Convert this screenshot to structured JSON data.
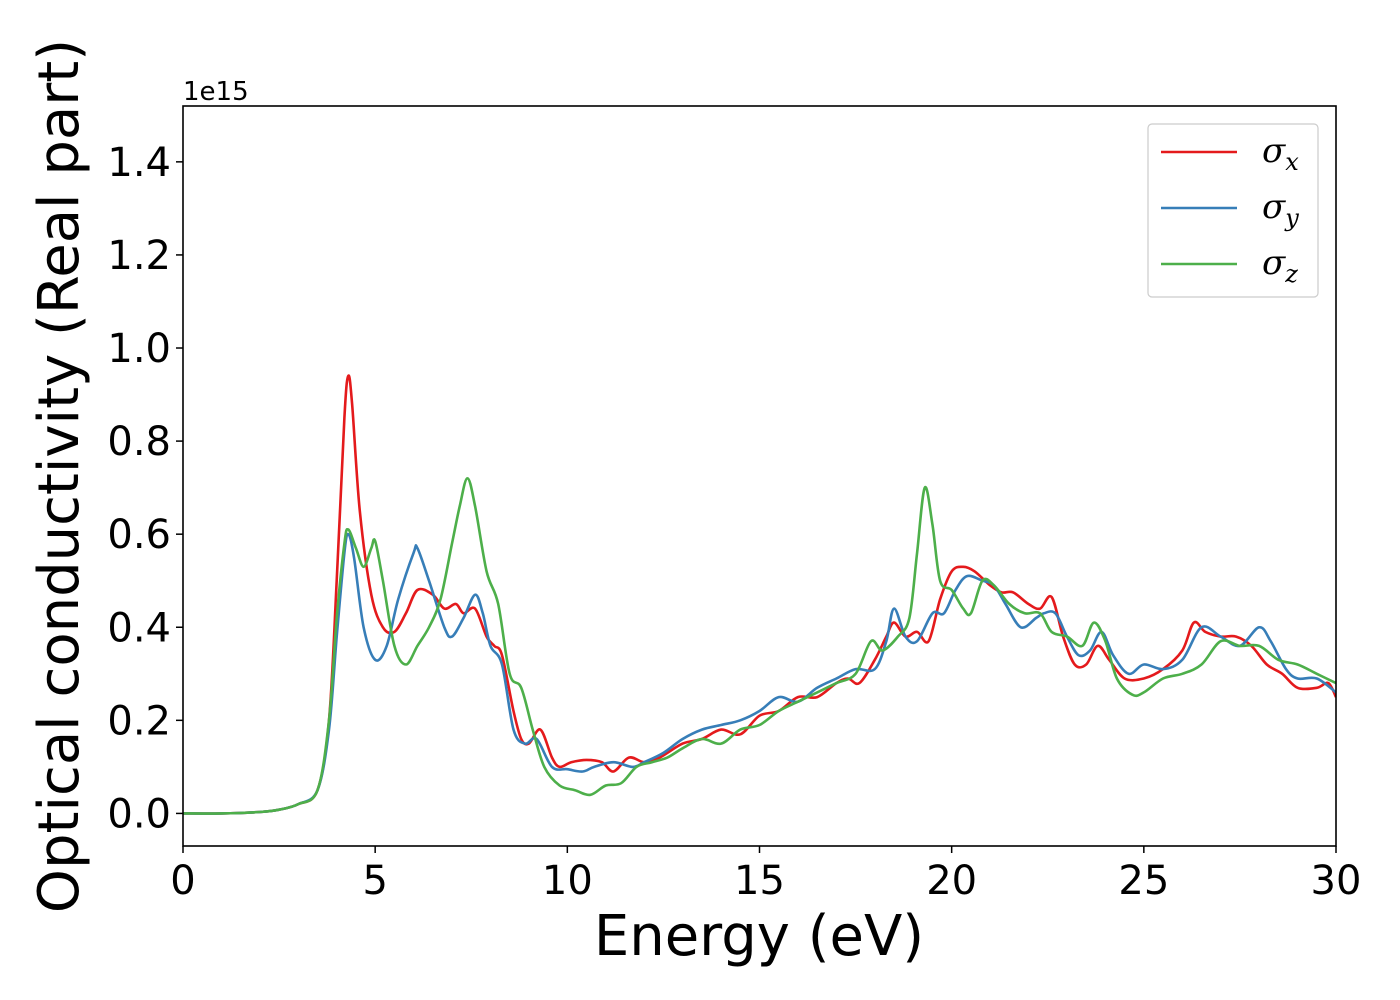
{
  "chart_data": {
    "type": "line",
    "xlabel": "Energy (eV)",
    "ylabel": "Optical conductivity (Real part)",
    "y_offset_label": "1e15",
    "xlim": [
      0,
      30
    ],
    "ylim": [
      -0.07,
      1.52
    ],
    "xticks": [
      0,
      5,
      10,
      15,
      20,
      25,
      30
    ],
    "xtick_labels": [
      "0",
      "5",
      "10",
      "15",
      "20",
      "25",
      "30"
    ],
    "yticks": [
      0.0,
      0.2,
      0.4,
      0.6,
      0.8,
      1.0,
      1.2,
      1.4
    ],
    "ytick_labels": [
      "0.0",
      "0.2",
      "0.4",
      "0.6",
      "0.8",
      "1.0",
      "1.2",
      "1.4"
    ],
    "grid": false,
    "legend_position": "top-right",
    "series": [
      {
        "name": "σ",
        "subscript": "x",
        "color": "#e41a1c",
        "points": [
          [
            0,
            0
          ],
          [
            1,
            0
          ],
          [
            2,
            0.003
          ],
          [
            2.5,
            0.008
          ],
          [
            3,
            0.02
          ],
          [
            3.5,
            0.05
          ],
          [
            3.8,
            0.2
          ],
          [
            4.0,
            0.5
          ],
          [
            4.2,
            0.85
          ],
          [
            4.3,
            0.94
          ],
          [
            4.4,
            0.88
          ],
          [
            4.6,
            0.65
          ],
          [
            4.9,
            0.47
          ],
          [
            5.2,
            0.4
          ],
          [
            5.5,
            0.39
          ],
          [
            5.8,
            0.43
          ],
          [
            6.1,
            0.48
          ],
          [
            6.5,
            0.47
          ],
          [
            6.8,
            0.44
          ],
          [
            7.1,
            0.45
          ],
          [
            7.3,
            0.43
          ],
          [
            7.6,
            0.44
          ],
          [
            7.9,
            0.38
          ],
          [
            8.1,
            0.36
          ],
          [
            8.3,
            0.34
          ],
          [
            8.6,
            0.22
          ],
          [
            8.8,
            0.16
          ],
          [
            9.0,
            0.15
          ],
          [
            9.3,
            0.18
          ],
          [
            9.6,
            0.12
          ],
          [
            9.8,
            0.1
          ],
          [
            10.1,
            0.11
          ],
          [
            10.5,
            0.115
          ],
          [
            10.9,
            0.11
          ],
          [
            11.2,
            0.09
          ],
          [
            11.6,
            0.12
          ],
          [
            12.0,
            0.11
          ],
          [
            12.4,
            0.12
          ],
          [
            13.0,
            0.15
          ],
          [
            13.5,
            0.16
          ],
          [
            14.0,
            0.18
          ],
          [
            14.5,
            0.17
          ],
          [
            15.0,
            0.21
          ],
          [
            15.5,
            0.22
          ],
          [
            16.0,
            0.25
          ],
          [
            16.5,
            0.25
          ],
          [
            17.0,
            0.28
          ],
          [
            17.3,
            0.29
          ],
          [
            17.6,
            0.28
          ],
          [
            18.0,
            0.33
          ],
          [
            18.3,
            0.38
          ],
          [
            18.5,
            0.41
          ],
          [
            18.8,
            0.38
          ],
          [
            19.1,
            0.39
          ],
          [
            19.4,
            0.37
          ],
          [
            19.7,
            0.46
          ],
          [
            20.0,
            0.52
          ],
          [
            20.3,
            0.53
          ],
          [
            20.6,
            0.52
          ],
          [
            21.0,
            0.49
          ],
          [
            21.3,
            0.475
          ],
          [
            21.6,
            0.475
          ],
          [
            22.0,
            0.45
          ],
          [
            22.3,
            0.44
          ],
          [
            22.6,
            0.465
          ],
          [
            22.9,
            0.38
          ],
          [
            23.2,
            0.32
          ],
          [
            23.5,
            0.32
          ],
          [
            23.8,
            0.36
          ],
          [
            24.1,
            0.33
          ],
          [
            24.5,
            0.29
          ],
          [
            25.0,
            0.29
          ],
          [
            25.5,
            0.31
          ],
          [
            26.0,
            0.35
          ],
          [
            26.3,
            0.41
          ],
          [
            26.6,
            0.39
          ],
          [
            27.0,
            0.38
          ],
          [
            27.4,
            0.38
          ],
          [
            27.8,
            0.36
          ],
          [
            28.2,
            0.32
          ],
          [
            28.6,
            0.3
          ],
          [
            29.0,
            0.27
          ],
          [
            29.5,
            0.27
          ],
          [
            29.8,
            0.28
          ],
          [
            30,
            0.25
          ]
        ]
      },
      {
        "name": "σ",
        "subscript": "y",
        "color": "#377eb8",
        "points": [
          [
            0,
            0
          ],
          [
            1,
            0
          ],
          [
            2,
            0.003
          ],
          [
            2.5,
            0.008
          ],
          [
            3,
            0.02
          ],
          [
            3.5,
            0.05
          ],
          [
            3.8,
            0.18
          ],
          [
            4.0,
            0.38
          ],
          [
            4.2,
            0.56
          ],
          [
            4.3,
            0.6
          ],
          [
            4.45,
            0.55
          ],
          [
            4.7,
            0.4
          ],
          [
            5.0,
            0.33
          ],
          [
            5.3,
            0.36
          ],
          [
            5.6,
            0.46
          ],
          [
            6.0,
            0.56
          ],
          [
            6.1,
            0.57
          ],
          [
            6.4,
            0.5
          ],
          [
            6.8,
            0.4
          ],
          [
            7.0,
            0.38
          ],
          [
            7.3,
            0.42
          ],
          [
            7.6,
            0.47
          ],
          [
            7.8,
            0.43
          ],
          [
            8.0,
            0.36
          ],
          [
            8.3,
            0.32
          ],
          [
            8.6,
            0.18
          ],
          [
            8.9,
            0.15
          ],
          [
            9.2,
            0.16
          ],
          [
            9.6,
            0.1
          ],
          [
            10.0,
            0.095
          ],
          [
            10.4,
            0.09
          ],
          [
            10.7,
            0.1
          ],
          [
            11.2,
            0.11
          ],
          [
            11.7,
            0.1
          ],
          [
            12.0,
            0.11
          ],
          [
            12.5,
            0.13
          ],
          [
            13.0,
            0.16
          ],
          [
            13.5,
            0.18
          ],
          [
            14.0,
            0.19
          ],
          [
            14.5,
            0.2
          ],
          [
            15.0,
            0.22
          ],
          [
            15.5,
            0.25
          ],
          [
            16.0,
            0.24
          ],
          [
            16.5,
            0.27
          ],
          [
            17.0,
            0.29
          ],
          [
            17.5,
            0.31
          ],
          [
            18.0,
            0.31
          ],
          [
            18.3,
            0.37
          ],
          [
            18.5,
            0.44
          ],
          [
            18.8,
            0.38
          ],
          [
            19.1,
            0.37
          ],
          [
            19.5,
            0.43
          ],
          [
            19.8,
            0.43
          ],
          [
            20.1,
            0.48
          ],
          [
            20.4,
            0.51
          ],
          [
            20.8,
            0.5
          ],
          [
            21.1,
            0.49
          ],
          [
            21.4,
            0.45
          ],
          [
            21.8,
            0.4
          ],
          [
            22.2,
            0.42
          ],
          [
            22.4,
            0.43
          ],
          [
            22.7,
            0.43
          ],
          [
            23.0,
            0.38
          ],
          [
            23.3,
            0.34
          ],
          [
            23.6,
            0.35
          ],
          [
            23.9,
            0.39
          ],
          [
            24.2,
            0.34
          ],
          [
            24.6,
            0.3
          ],
          [
            25.0,
            0.32
          ],
          [
            25.5,
            0.31
          ],
          [
            26.0,
            0.33
          ],
          [
            26.5,
            0.4
          ],
          [
            27.0,
            0.38
          ],
          [
            27.5,
            0.36
          ],
          [
            28.0,
            0.4
          ],
          [
            28.3,
            0.37
          ],
          [
            28.7,
            0.31
          ],
          [
            29.0,
            0.29
          ],
          [
            29.5,
            0.29
          ],
          [
            30,
            0.26
          ]
        ]
      },
      {
        "name": "σ",
        "subscript": "z",
        "color": "#4daf4a",
        "points": [
          [
            0,
            0
          ],
          [
            1,
            0
          ],
          [
            2,
            0.003
          ],
          [
            2.5,
            0.008
          ],
          [
            3,
            0.02
          ],
          [
            3.5,
            0.05
          ],
          [
            3.8,
            0.2
          ],
          [
            4.0,
            0.42
          ],
          [
            4.2,
            0.58
          ],
          [
            4.3,
            0.61
          ],
          [
            4.5,
            0.57
          ],
          [
            4.7,
            0.53
          ],
          [
            4.9,
            0.57
          ],
          [
            5.0,
            0.585
          ],
          [
            5.2,
            0.5
          ],
          [
            5.5,
            0.36
          ],
          [
            5.8,
            0.32
          ],
          [
            6.1,
            0.36
          ],
          [
            6.4,
            0.4
          ],
          [
            6.7,
            0.46
          ],
          [
            7.0,
            0.58
          ],
          [
            7.2,
            0.66
          ],
          [
            7.4,
            0.72
          ],
          [
            7.6,
            0.66
          ],
          [
            7.9,
            0.52
          ],
          [
            8.2,
            0.45
          ],
          [
            8.5,
            0.3
          ],
          [
            8.8,
            0.27
          ],
          [
            9.1,
            0.18
          ],
          [
            9.4,
            0.1
          ],
          [
            9.8,
            0.06
          ],
          [
            10.2,
            0.05
          ],
          [
            10.6,
            0.04
          ],
          [
            11.0,
            0.06
          ],
          [
            11.4,
            0.065
          ],
          [
            11.8,
            0.1
          ],
          [
            12.2,
            0.11
          ],
          [
            12.6,
            0.12
          ],
          [
            13.0,
            0.14
          ],
          [
            13.5,
            0.16
          ],
          [
            14.0,
            0.15
          ],
          [
            14.5,
            0.18
          ],
          [
            15.0,
            0.19
          ],
          [
            15.5,
            0.22
          ],
          [
            16.0,
            0.24
          ],
          [
            16.5,
            0.26
          ],
          [
            17.0,
            0.28
          ],
          [
            17.5,
            0.3
          ],
          [
            17.9,
            0.37
          ],
          [
            18.2,
            0.35
          ],
          [
            18.6,
            0.38
          ],
          [
            18.9,
            0.42
          ],
          [
            19.1,
            0.56
          ],
          [
            19.3,
            0.7
          ],
          [
            19.5,
            0.62
          ],
          [
            19.7,
            0.5
          ],
          [
            20.0,
            0.48
          ],
          [
            20.3,
            0.44
          ],
          [
            20.5,
            0.43
          ],
          [
            20.8,
            0.5
          ],
          [
            21.1,
            0.49
          ],
          [
            21.5,
            0.45
          ],
          [
            21.9,
            0.43
          ],
          [
            22.3,
            0.43
          ],
          [
            22.6,
            0.39
          ],
          [
            23.0,
            0.38
          ],
          [
            23.4,
            0.36
          ],
          [
            23.7,
            0.41
          ],
          [
            24.0,
            0.37
          ],
          [
            24.3,
            0.29
          ],
          [
            24.7,
            0.255
          ],
          [
            25.0,
            0.26
          ],
          [
            25.5,
            0.29
          ],
          [
            26.0,
            0.3
          ],
          [
            26.5,
            0.32
          ],
          [
            27.0,
            0.37
          ],
          [
            27.5,
            0.36
          ],
          [
            28.0,
            0.36
          ],
          [
            28.5,
            0.33
          ],
          [
            29.0,
            0.32
          ],
          [
            29.5,
            0.3
          ],
          [
            30,
            0.28
          ]
        ]
      }
    ]
  }
}
